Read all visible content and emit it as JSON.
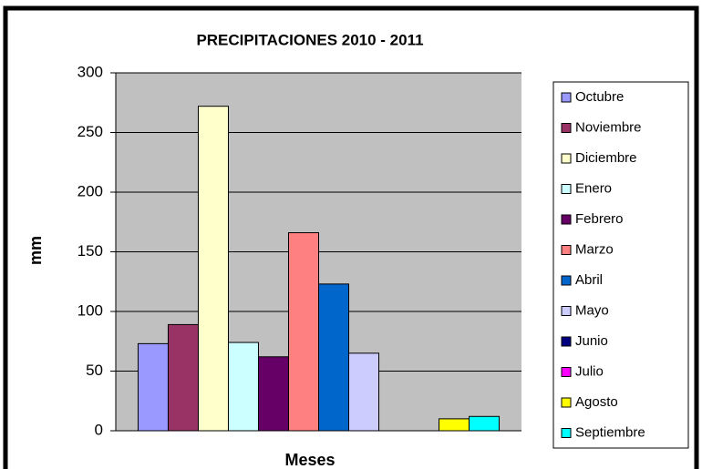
{
  "chart_data": {
    "type": "bar",
    "title": "PRECIPITACIONES 2010 - 2011",
    "x_label": "Meses",
    "y_label": "mm",
    "categories": [
      null
    ],
    "series": [
      {
        "name": "Octubre",
        "color": "#9999ff",
        "values": [
          73
        ]
      },
      {
        "name": "Noviembre",
        "color": "#993366",
        "values": [
          89
        ]
      },
      {
        "name": "Diciembre",
        "color": "#ffffcc",
        "values": [
          272
        ]
      },
      {
        "name": "Enero",
        "color": "#ccffff",
        "values": [
          74
        ]
      },
      {
        "name": "Febrero",
        "color": "#660066",
        "values": [
          62
        ]
      },
      {
        "name": "Marzo",
        "color": "#ff8080",
        "values": [
          166
        ]
      },
      {
        "name": "Abril",
        "color": "#0066cc",
        "values": [
          123
        ]
      },
      {
        "name": "Mayo",
        "color": "#ccccff",
        "values": [
          65
        ]
      },
      {
        "name": "Junio",
        "color": "#000080",
        "values": [
          0
        ]
      },
      {
        "name": "Julio",
        "color": "#ff00ff",
        "values": [
          0
        ]
      },
      {
        "name": "Agosto",
        "color": "#ffff00",
        "values": [
          10
        ]
      },
      {
        "name": "Septiembre",
        "color": "#00ffff",
        "values": [
          12
        ]
      }
    ],
    "ylim": [
      0,
      300
    ],
    "yticks": [
      0,
      50,
      100,
      150,
      200,
      250,
      300
    ],
    "grid": true,
    "legend": "right",
    "plot_background": "#c0c0c0"
  }
}
